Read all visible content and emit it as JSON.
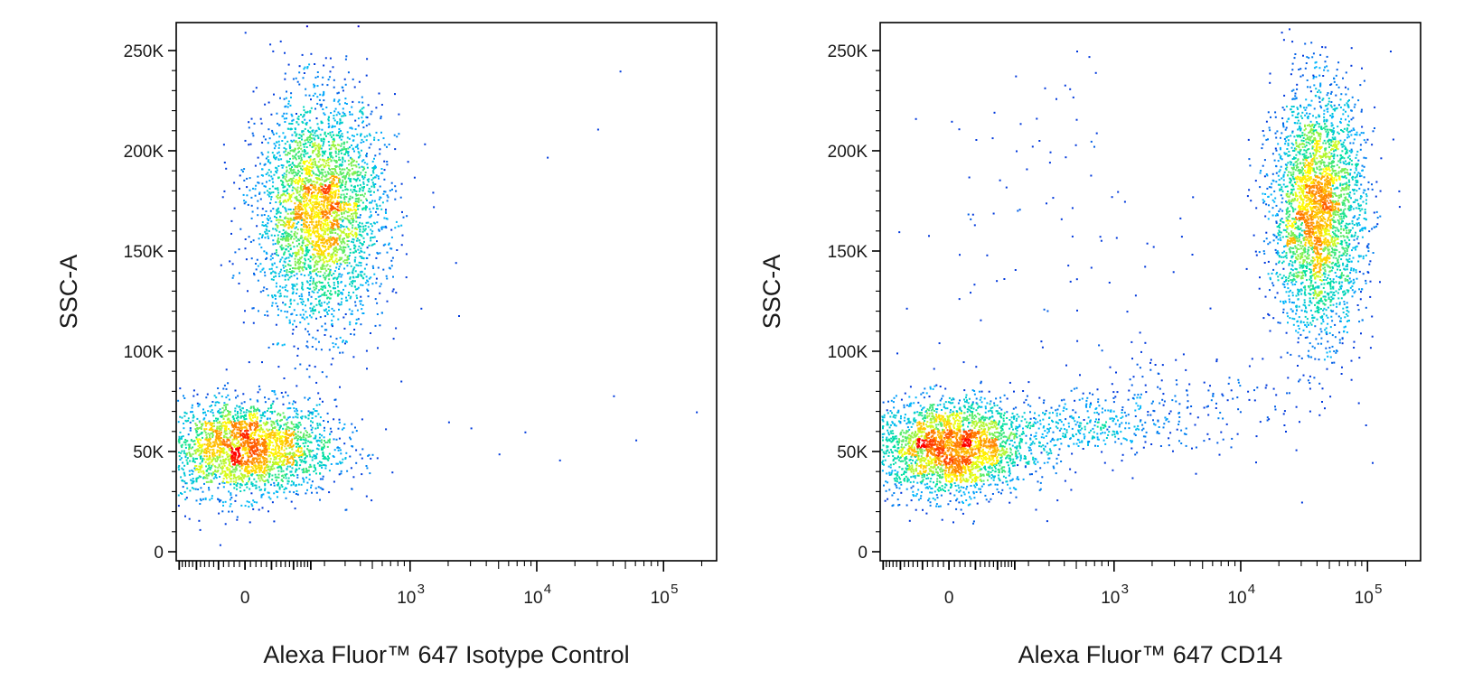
{
  "chart_data": [
    {
      "type": "scatter",
      "subtype": "flow-cytometry-density-dot-plot",
      "xlabel": "Alexa Fluor™ 647 Isotype Control",
      "ylabel": "SSC-A",
      "x_scale": "biexponential",
      "x_ticks": [
        {
          "value": 0,
          "base": "0",
          "exp": ""
        },
        {
          "value": 1000,
          "base": "10",
          "exp": "3"
        },
        {
          "value": 10000,
          "base": "10",
          "exp": "4"
        },
        {
          "value": 100000,
          "base": "10",
          "exp": "5"
        }
      ],
      "y_ticks": [
        {
          "value": 0,
          "label": "0"
        },
        {
          "value": 50000,
          "label": "50K"
        },
        {
          "value": 100000,
          "label": "100K"
        },
        {
          "value": 150000,
          "label": "150K"
        },
        {
          "value": 200000,
          "label": "200K"
        },
        {
          "value": 250000,
          "label": "250K"
        }
      ],
      "ylim": [
        0,
        262144
      ],
      "grid": false,
      "color_scale": [
        "#0000cc",
        "#00b4ff",
        "#00e0a0",
        "#ffff00",
        "#ff8000",
        "#ff0000"
      ],
      "populations": [
        {
          "name": "",
          "count": 2600,
          "x_center": 0,
          "x_spread_decades": 0.35,
          "y_center": 52000,
          "y_spread": 12000
        },
        {
          "name": "",
          "count": 3400,
          "x_center": 180,
          "x_spread_decades": 0.25,
          "y_center": 170000,
          "y_spread": 28000
        }
      ],
      "sparse_points": [
        {
          "x": 2000,
          "y": 65000
        },
        {
          "x": 3000,
          "y": 62000
        },
        {
          "x": 5000,
          "y": 49000
        },
        {
          "x": 8000,
          "y": 60000
        },
        {
          "x": 15000,
          "y": 46000
        },
        {
          "x": 40000,
          "y": 78000
        },
        {
          "x": 60000,
          "y": 56000
        },
        {
          "x": 180000,
          "y": 70000
        },
        {
          "x": 30000,
          "y": 211000
        },
        {
          "x": 45000,
          "y": 240000
        },
        {
          "x": 12000,
          "y": 197000
        },
        {
          "x": 2400,
          "y": 118000
        }
      ]
    },
    {
      "type": "scatter",
      "subtype": "flow-cytometry-density-dot-plot",
      "xlabel": "Alexa Fluor™ 647 CD14",
      "ylabel": "SSC-A",
      "x_scale": "biexponential",
      "x_ticks": [
        {
          "value": 0,
          "base": "0",
          "exp": ""
        },
        {
          "value": 1000,
          "base": "10",
          "exp": "3"
        },
        {
          "value": 10000,
          "base": "10",
          "exp": "4"
        },
        {
          "value": 100000,
          "base": "10",
          "exp": "5"
        }
      ],
      "y_ticks": [
        {
          "value": 0,
          "label": "0"
        },
        {
          "value": 50000,
          "label": "50K"
        },
        {
          "value": 100000,
          "label": "100K"
        },
        {
          "value": 150000,
          "label": "150K"
        },
        {
          "value": 200000,
          "label": "200K"
        },
        {
          "value": 250000,
          "label": "250K"
        }
      ],
      "ylim": [
        0,
        262144
      ],
      "grid": false,
      "color_scale": [
        "#0000cc",
        "#00b4ff",
        "#00e0a0",
        "#ffff00",
        "#ff8000",
        "#ff0000"
      ],
      "populations": [
        {
          "name": "",
          "count": 2600,
          "x_center": 0,
          "x_spread_decades": 0.3,
          "y_center": 52000,
          "y_spread": 12000
        },
        {
          "name": "",
          "count": 3200,
          "x_center": 40000,
          "x_spread_decades": 0.18,
          "y_center": 170000,
          "y_spread": 30000
        },
        {
          "name": "",
          "count": 420,
          "x_center": 350,
          "x_spread_decades": 0.45,
          "y_center": 62000,
          "y_spread": 7000
        },
        {
          "name": "",
          "count": 220,
          "x_center": 3000,
          "x_spread_decades": 0.55,
          "y_center": 75000,
          "y_spread": 14000
        },
        {
          "name": "",
          "count": 90,
          "x_center": 300,
          "x_spread_decades": 0.6,
          "y_center": 165000,
          "y_spread": 40000
        }
      ],
      "sparse_points": [
        {
          "x": 500,
          "y": 250000
        },
        {
          "x": 400,
          "y": 233000
        },
        {
          "x": 650,
          "y": 205000
        },
        {
          "x": 1200,
          "y": 175000
        },
        {
          "x": 13000,
          "y": 45000
        },
        {
          "x": 16000,
          "y": 66000
        },
        {
          "x": 30000,
          "y": 25000
        },
        {
          "x": 150000,
          "y": 250000
        }
      ]
    }
  ]
}
